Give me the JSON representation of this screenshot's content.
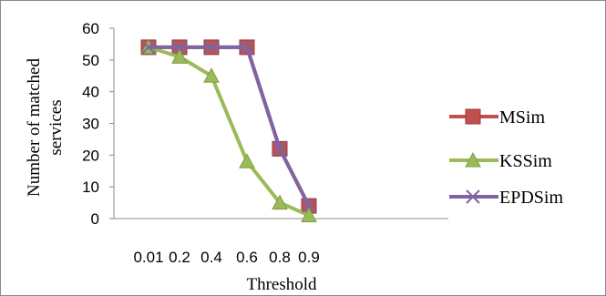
{
  "chart_data": {
    "type": "line",
    "categories": [
      "0.01",
      "0.2",
      "0.4",
      "0.6",
      "0.8",
      "0.9"
    ],
    "series": [
      {
        "name": "MSim",
        "values": [
          54,
          54,
          54,
          54,
          22,
          4
        ],
        "color": "#c0504d",
        "marker": "square"
      },
      {
        "name": "KSSim",
        "values": [
          54,
          51,
          45,
          18,
          5,
          1
        ],
        "color": "#9bbb59",
        "marker": "triangle"
      },
      {
        "name": "EPDSim",
        "values": [
          54,
          54,
          54,
          54,
          22,
          4
        ],
        "color": "#8064a2",
        "marker": "x"
      }
    ],
    "xlabel": "Threshold",
    "ylabel": "Number of matched services",
    "ylim": [
      0,
      60
    ],
    "yticks": [
      "0",
      "10",
      "20",
      "30",
      "40",
      "50",
      "60"
    ],
    "grid": false,
    "legend_position": "right"
  }
}
